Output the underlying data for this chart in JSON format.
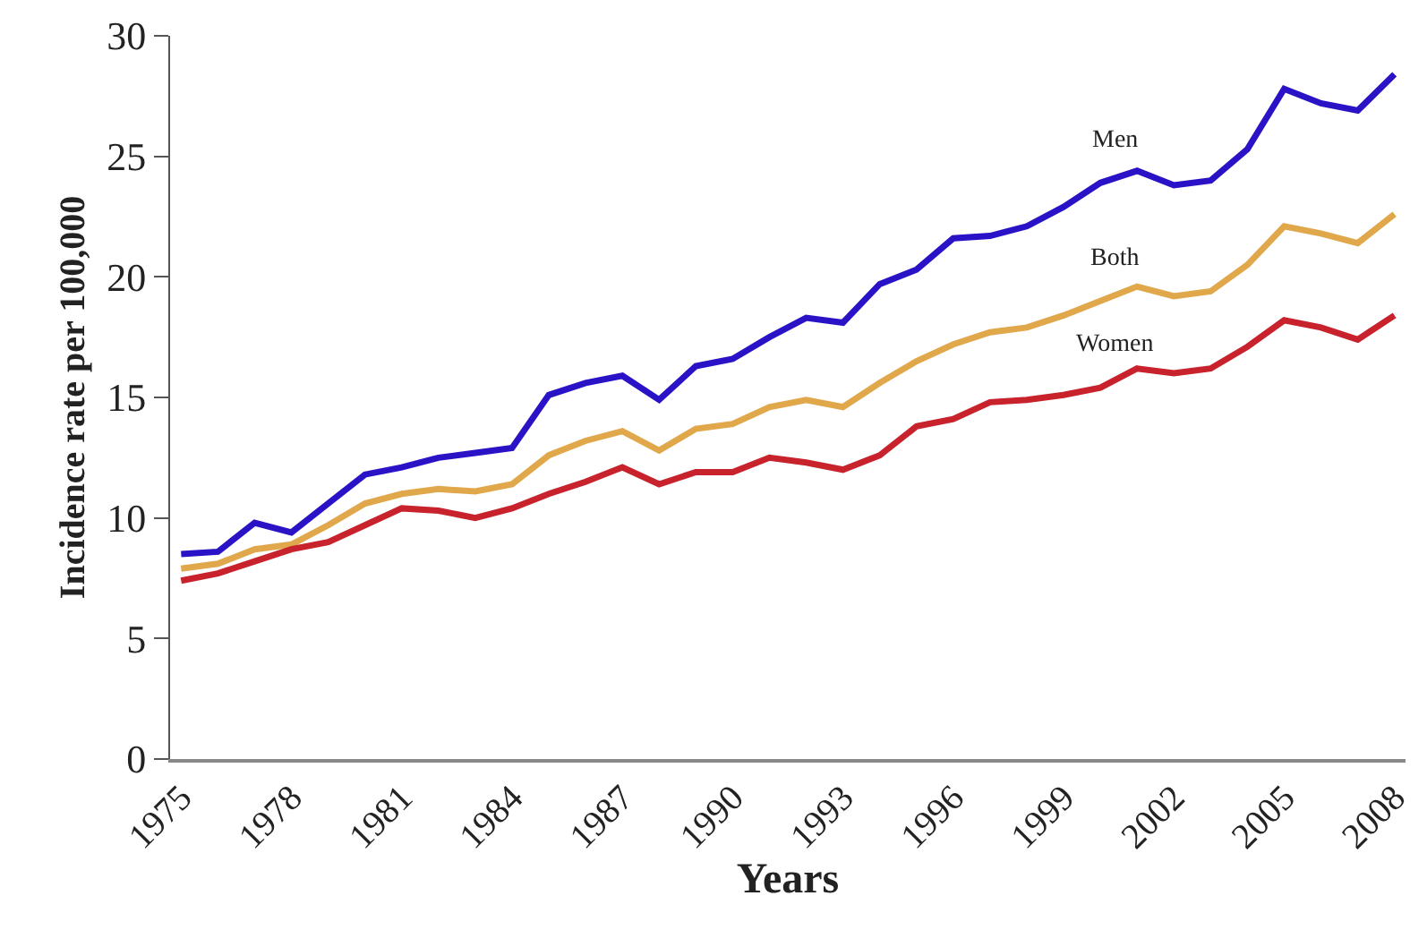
{
  "chart_data": {
    "type": "line",
    "xlabel": "Years",
    "ylabel": "Incidence rate per 100,000",
    "x": [
      1975,
      1976,
      1977,
      1978,
      1979,
      1980,
      1981,
      1982,
      1983,
      1984,
      1985,
      1986,
      1987,
      1988,
      1989,
      1990,
      1991,
      1992,
      1993,
      1994,
      1995,
      1996,
      1997,
      1998,
      1999,
      2000,
      2001,
      2002,
      2003,
      2004,
      2005,
      2006,
      2007,
      2008
    ],
    "series": [
      {
        "name": "Men",
        "color": "#2a12c6",
        "values": [
          8.5,
          8.6,
          9.8,
          9.4,
          10.6,
          11.8,
          12.1,
          12.5,
          12.7,
          12.9,
          15.1,
          15.6,
          15.9,
          14.9,
          16.3,
          16.6,
          17.5,
          18.3,
          18.1,
          19.7,
          20.3,
          21.6,
          21.7,
          22.1,
          22.9,
          23.9,
          24.4,
          23.8,
          24.0,
          25.3,
          27.8,
          27.2,
          26.9,
          28.4
        ]
      },
      {
        "name": "Both",
        "color": "#e0a84a",
        "values": [
          7.9,
          8.1,
          8.7,
          8.9,
          9.7,
          10.6,
          11.0,
          11.2,
          11.1,
          11.4,
          12.6,
          13.2,
          13.6,
          12.8,
          13.7,
          13.9,
          14.6,
          14.9,
          14.6,
          15.6,
          16.5,
          17.2,
          17.7,
          17.9,
          18.4,
          19.0,
          19.6,
          19.2,
          19.4,
          20.5,
          22.1,
          21.8,
          21.4,
          22.6
        ]
      },
      {
        "name": "Women",
        "color": "#c8232c",
        "values": [
          7.4,
          7.7,
          8.2,
          8.7,
          9.0,
          9.7,
          10.4,
          10.3,
          10.0,
          10.4,
          11.0,
          11.5,
          12.1,
          11.4,
          11.9,
          11.9,
          12.5,
          12.3,
          12.0,
          12.6,
          13.8,
          14.1,
          14.8,
          14.9,
          15.1,
          15.4,
          16.2,
          16.0,
          16.2,
          17.1,
          18.2,
          17.9,
          17.4,
          18.4
        ]
      }
    ],
    "xlim": [
      1974.7,
      2008.3
    ],
    "xticks": [
      1975,
      1978,
      1981,
      1984,
      1987,
      1990,
      1993,
      1996,
      1999,
      2002,
      2005,
      2008
    ],
    "ylim": [
      0,
      30
    ],
    "yticks": [
      0,
      5,
      10,
      15,
      20,
      25,
      30
    ],
    "legend": false,
    "marker": "none",
    "line_style": "solid"
  }
}
